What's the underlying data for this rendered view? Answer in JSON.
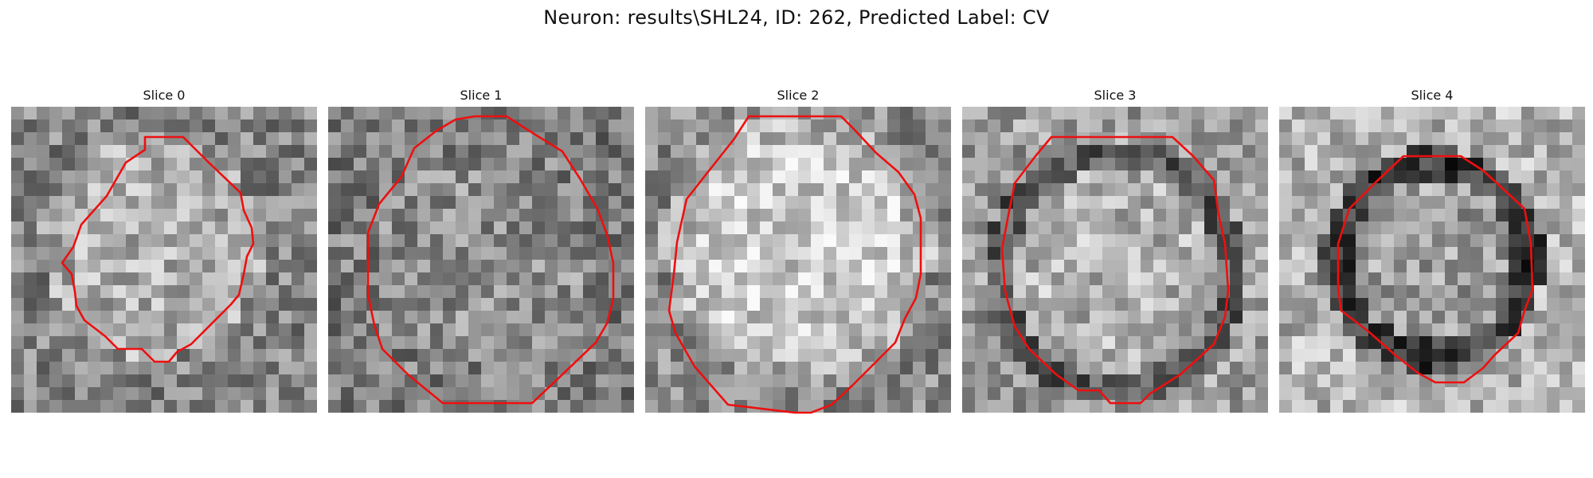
{
  "figure": {
    "title": "Neuron: results\\SHL24, ID: 262, Predicted Label: CV"
  },
  "panels": [
    {
      "title": "Slice 0"
    },
    {
      "title": "Slice 1"
    },
    {
      "title": "Slice 2"
    },
    {
      "title": "Slice 3"
    },
    {
      "title": "Slice 4"
    }
  ],
  "colors": {
    "contour": "#ee0f0f",
    "colormap": "gray"
  }
}
